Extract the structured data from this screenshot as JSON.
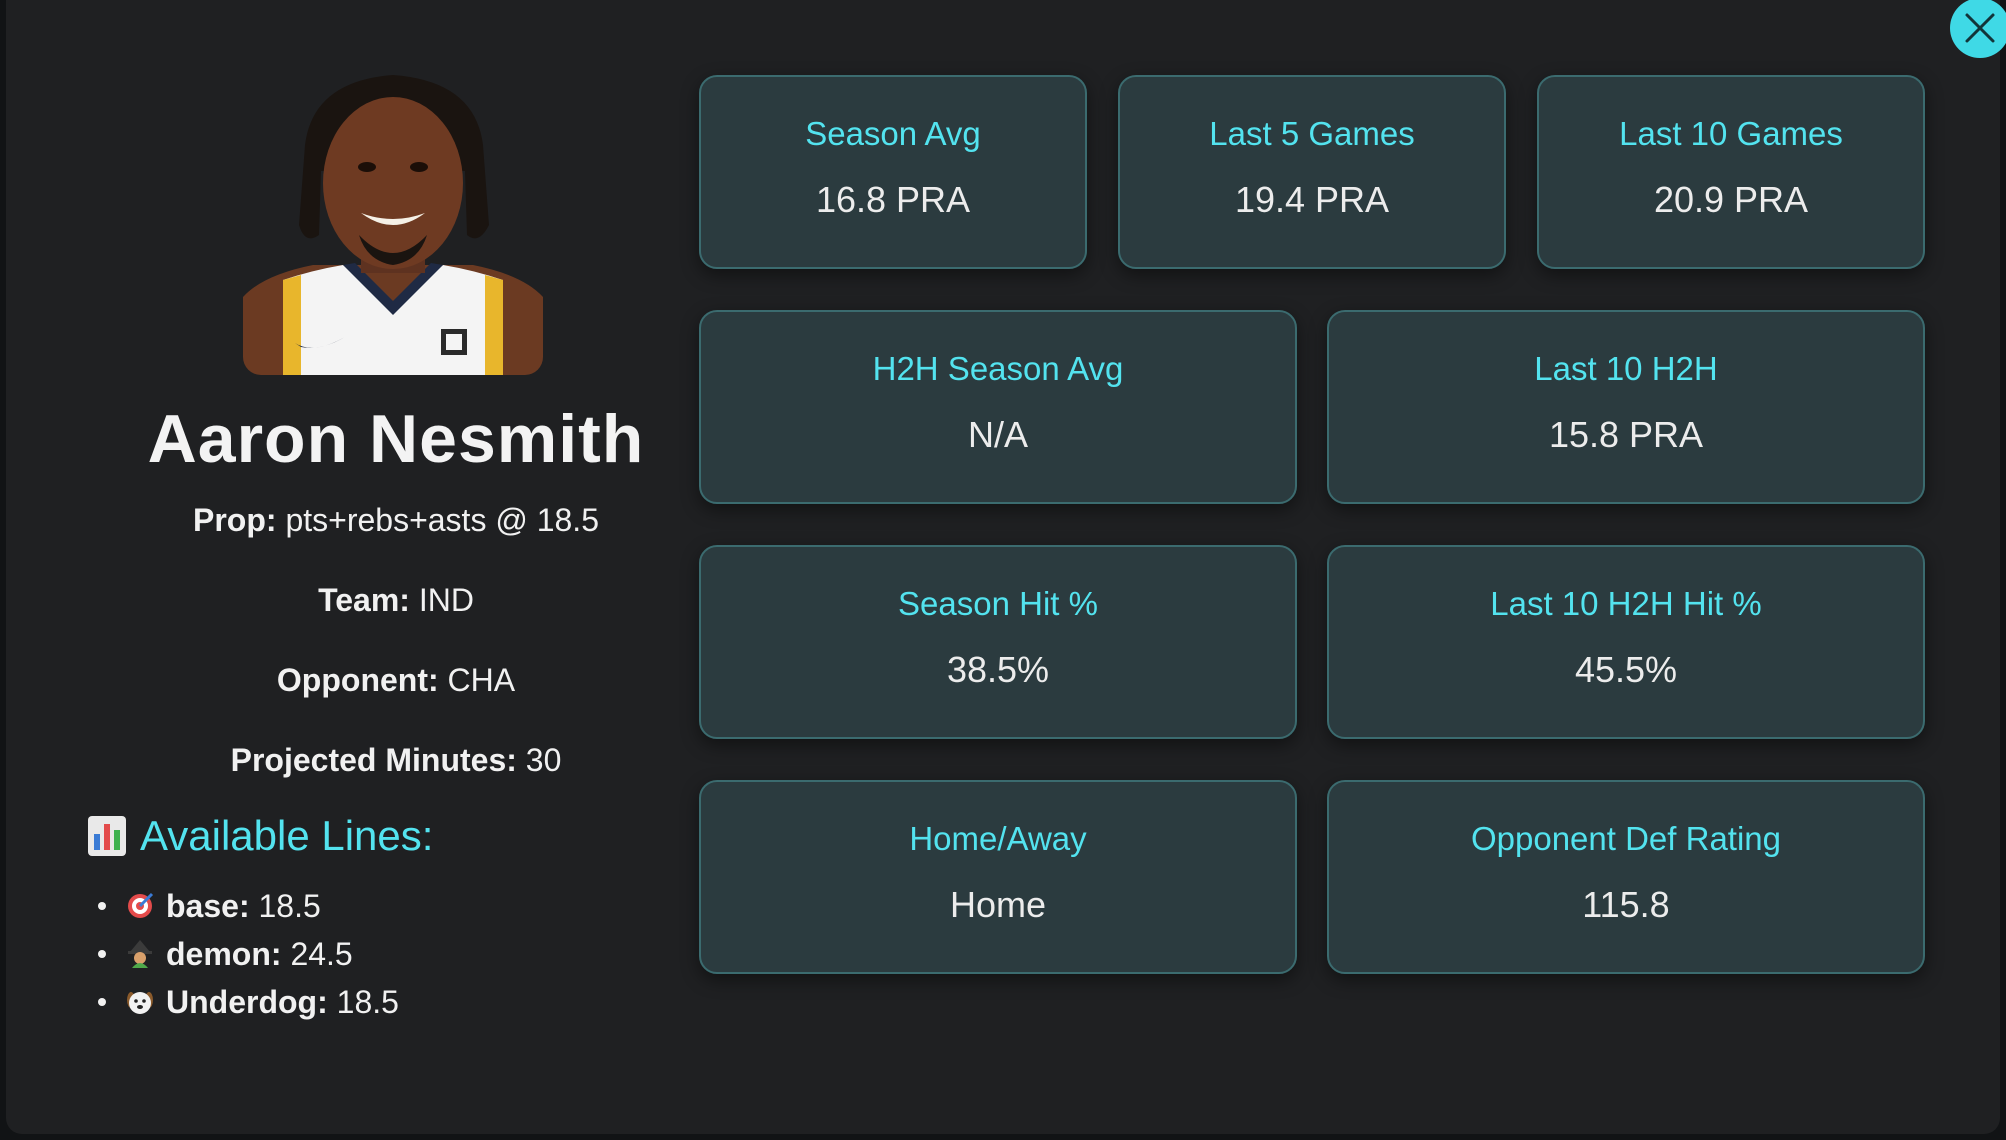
{
  "player": {
    "name": "Aaron Nesmith",
    "prop_label": "Prop:",
    "prop_value": "pts+rebs+asts @ 18.5",
    "team_label": "Team:",
    "team_value": "IND",
    "opponent_label": "Opponent:",
    "opponent_value": "CHA",
    "minutes_label": "Projected Minutes:",
    "minutes_value": "30"
  },
  "available_lines": {
    "title": "Available Lines:",
    "icon": "bar-chart-icon",
    "items": [
      {
        "icon": "target-icon",
        "name": "base:",
        "value": "18.5"
      },
      {
        "icon": "witch-icon",
        "name": "demon:",
        "value": "24.5"
      },
      {
        "icon": "dog-icon",
        "name": "Underdog:",
        "value": "18.5"
      }
    ]
  },
  "stats": [
    {
      "label": "Season Avg",
      "value": "16.8 PRA"
    },
    {
      "label": "Last 5 Games",
      "value": "19.4 PRA"
    },
    {
      "label": "Last 10 Games",
      "value": "20.9 PRA"
    },
    {
      "label": "H2H Season Avg",
      "value": "N/A"
    },
    {
      "label": "Last 10 H2H",
      "value": "15.8 PRA"
    },
    {
      "label": "Season Hit %",
      "value": "38.5%"
    },
    {
      "label": "Last 10 H2H Hit %",
      "value": "45.5%"
    },
    {
      "label": "Home/Away",
      "value": "Home"
    },
    {
      "label": "Opponent Def Rating",
      "value": "115.8"
    }
  ],
  "colors": {
    "accent": "#53e3ef",
    "card_bg": "#2b3b3f",
    "modal_bg": "#1f2022"
  }
}
